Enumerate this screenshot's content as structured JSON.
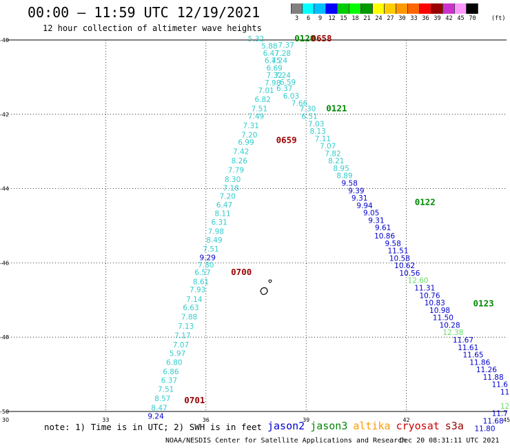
{
  "header": {
    "title": "00:00 – 11:59 UTC 12/19/2021",
    "subtitle": "12 hour collection of altimeter wave heights"
  },
  "colorbar": {
    "labels": [
      "3",
      "6",
      "9",
      "12",
      "15",
      "18",
      "21",
      "24",
      "27",
      "30",
      "33",
      "36",
      "39",
      "42",
      "45",
      "70"
    ],
    "unit": "(ft)",
    "colors": [
      "#808080",
      "#00ffff",
      "#00bfff",
      "#0000ff",
      "#00cc00",
      "#00ff00",
      "#009900",
      "#ffff00",
      "#ffcc00",
      "#ff9900",
      "#ff6600",
      "#ff0000",
      "#990000",
      "#cc33cc",
      "#ff99ff",
      "#000000"
    ]
  },
  "axes": {
    "lat_labels": [
      "-40",
      "-42",
      "-44",
      "-46",
      "-48",
      "-50"
    ],
    "lon_labels": [
      "30",
      "33",
      "36",
      "39",
      "42",
      "45"
    ]
  },
  "satellites": [
    {
      "name": "jason2",
      "color": "#0000cc"
    },
    {
      "name": "jason3",
      "color": "#008800"
    },
    {
      "name": "altika",
      "color": "#ff9900"
    },
    {
      "name": "cryosat",
      "color": "#cc0000"
    },
    {
      "name": "s3a",
      "color": "#990000"
    }
  ],
  "note": "note:  1) Time is in UTC;  2) SWH is in feet",
  "footer": {
    "center": "NOAA/NESDIS Center for Satellite Applications and Research",
    "timestamp": "Dec 20 08:31:11 UTC 2021"
  },
  "time_labels": [
    {
      "text": "0120",
      "color": "#008800",
      "lon": 38.65,
      "lat": -39.96
    },
    {
      "text": "0658",
      "color": "#990000",
      "lon": 39.15,
      "lat": -39.96
    },
    {
      "text": "0121",
      "color": "#008800",
      "lon": 39.6,
      "lat": -41.85
    },
    {
      "text": "0659",
      "color": "#990000",
      "lon": 38.1,
      "lat": -42.7
    },
    {
      "text": "0122",
      "color": "#008800",
      "lon": 42.25,
      "lat": -44.37
    },
    {
      "text": "0700",
      "color": "#990000",
      "lon": 36.75,
      "lat": -46.25
    },
    {
      "text": "0123",
      "color": "#008800",
      "lon": 44.0,
      "lat": -47.1
    },
    {
      "text": "0701",
      "color": "#990000",
      "lon": 35.35,
      "lat": -49.7
    }
  ],
  "track_a": [
    {
      "v": "5.32",
      "c": "#33cccc",
      "lon": 37.5,
      "lat": -39.96
    },
    {
      "v": "5.88",
      "c": "#33cccc",
      "lon": 37.9,
      "lat": -40.16
    },
    {
      "v": "6.47",
      "c": "#33cccc",
      "lon": 37.95,
      "lat": -40.35
    },
    {
      "v": "6.45",
      "c": "#33cccc",
      "lon": 38.0,
      "lat": -40.55
    },
    {
      "v": "6.69",
      "c": "#33cccc",
      "lon": 38.05,
      "lat": -40.75
    },
    {
      "v": "7.32",
      "c": "#33cccc",
      "lon": 38.05,
      "lat": -40.95
    },
    {
      "v": "7.98",
      "c": "#33cccc",
      "lon": 38.0,
      "lat": -41.15
    },
    {
      "v": "7.01",
      "c": "#33cccc",
      "lon": 37.8,
      "lat": -41.35
    },
    {
      "v": "6.82",
      "c": "#33cccc",
      "lon": 37.7,
      "lat": -41.6
    },
    {
      "v": "7.51",
      "c": "#33cccc",
      "lon": 37.6,
      "lat": -41.85
    },
    {
      "v": "7.49",
      "c": "#33cccc",
      "lon": 37.5,
      "lat": -42.05
    },
    {
      "v": "7.31",
      "c": "#33cccc",
      "lon": 37.35,
      "lat": -42.3
    },
    {
      "v": "7.20",
      "c": "#33cccc",
      "lon": 37.3,
      "lat": -42.55
    },
    {
      "v": "6.99",
      "c": "#33cccc",
      "lon": 37.2,
      "lat": -42.75
    },
    {
      "v": "7.42",
      "c": "#33cccc",
      "lon": 37.05,
      "lat": -43.0
    },
    {
      "v": "8.26",
      "c": "#33cccc",
      "lon": 37.0,
      "lat": -43.25
    },
    {
      "v": "7.79",
      "c": "#33cccc",
      "lon": 36.9,
      "lat": -43.5
    },
    {
      "v": "8.30",
      "c": "#33cccc",
      "lon": 36.8,
      "lat": -43.75
    },
    {
      "v": "7.18",
      "c": "#33cccc",
      "lon": 36.75,
      "lat": -43.98
    },
    {
      "v": "7.20",
      "c": "#33cccc",
      "lon": 36.65,
      "lat": -44.2
    },
    {
      "v": "6.47",
      "c": "#33cccc",
      "lon": 36.55,
      "lat": -44.43
    },
    {
      "v": "8.11",
      "c": "#33cccc",
      "lon": 36.5,
      "lat": -44.67
    },
    {
      "v": "6.31",
      "c": "#33cccc",
      "lon": 36.4,
      "lat": -44.9
    },
    {
      "v": "7.98",
      "c": "#33cccc",
      "lon": 36.3,
      "lat": -45.15
    },
    {
      "v": "8.49",
      "c": "#33cccc",
      "lon": 36.25,
      "lat": -45.38
    },
    {
      "v": "7.51",
      "c": "#33cccc",
      "lon": 36.15,
      "lat": -45.62
    },
    {
      "v": "9.29",
      "c": "#0000cc",
      "lon": 36.05,
      "lat": -45.85
    },
    {
      "v": "7.80",
      "c": "#33cccc",
      "lon": 36.0,
      "lat": -46.05
    },
    {
      "v": "6.57",
      "c": "#33cccc",
      "lon": 35.9,
      "lat": -46.25
    },
    {
      "v": "8.61",
      "c": "#33cccc",
      "lon": 35.85,
      "lat": -46.5
    },
    {
      "v": "7.93",
      "c": "#33cccc",
      "lon": 35.75,
      "lat": -46.72
    },
    {
      "v": "7.14",
      "c": "#33cccc",
      "lon": 35.65,
      "lat": -46.98
    },
    {
      "v": "6.63",
      "c": "#33cccc",
      "lon": 35.55,
      "lat": -47.2
    },
    {
      "v": "7.88",
      "c": "#33cccc",
      "lon": 35.5,
      "lat": -47.45
    },
    {
      "v": "7.13",
      "c": "#33cccc",
      "lon": 35.4,
      "lat": -47.7
    },
    {
      "v": "7.17",
      "c": "#33cccc",
      "lon": 35.3,
      "lat": -47.95
    },
    {
      "v": "7.07",
      "c": "#33cccc",
      "lon": 35.25,
      "lat": -48.2
    },
    {
      "v": "5.97",
      "c": "#33cccc",
      "lon": 35.15,
      "lat": -48.43
    },
    {
      "v": "6.80",
      "c": "#33cccc",
      "lon": 35.05,
      "lat": -48.67
    },
    {
      "v": "6.86",
      "c": "#33cccc",
      "lon": 34.95,
      "lat": -48.92
    },
    {
      "v": "6.37",
      "c": "#33cccc",
      "lon": 34.9,
      "lat": -49.16
    },
    {
      "v": "7.51",
      "c": "#33cccc",
      "lon": 34.8,
      "lat": -49.4
    },
    {
      "v": "8.57",
      "c": "#33cccc",
      "lon": 34.7,
      "lat": -49.65
    },
    {
      "v": "8.47",
      "c": "#33cccc",
      "lon": 34.6,
      "lat": -49.9
    },
    {
      "v": "9.24",
      "c": "#0000cc",
      "lon": 34.5,
      "lat": -50.12
    }
  ],
  "track_b": [
    {
      "v": "7.37",
      "c": "#33cccc",
      "lon": 38.4,
      "lat": -40.13
    },
    {
      "v": "7.28",
      "c": "#33cccc",
      "lon": 38.3,
      "lat": -40.35
    },
    {
      "v": "7.24",
      "c": "#33cccc",
      "lon": 38.2,
      "lat": -40.55
    },
    {
      "v": "7.24",
      "c": "#33cccc",
      "lon": 38.3,
      "lat": -40.95
    },
    {
      "v": "6.59",
      "c": "#33cccc",
      "lon": 38.45,
      "lat": -41.13
    },
    {
      "v": "6.37",
      "c": "#33cccc",
      "lon": 38.35,
      "lat": -41.3
    },
    {
      "v": "6.03",
      "c": "#33cccc",
      "lon": 38.55,
      "lat": -41.5
    },
    {
      "v": "7.66",
      "c": "#33cccc",
      "lon": 38.8,
      "lat": -41.7
    },
    {
      "v": "7.30",
      "c": "#33cccc",
      "lon": 39.05,
      "lat": -41.85
    },
    {
      "v": "6.51",
      "c": "#33cccc",
      "lon": 39.1,
      "lat": -42.05
    },
    {
      "v": "7.03",
      "c": "#33cccc",
      "lon": 39.3,
      "lat": -42.25
    },
    {
      "v": "8.13",
      "c": "#33cccc",
      "lon": 39.35,
      "lat": -42.45
    },
    {
      "v": "7.11",
      "c": "#33cccc",
      "lon": 39.5,
      "lat": -42.65
    },
    {
      "v": "7.07",
      "c": "#33cccc",
      "lon": 39.65,
      "lat": -42.85
    },
    {
      "v": "7.82",
      "c": "#33cccc",
      "lon": 39.8,
      "lat": -43.05
    },
    {
      "v": "8.21",
      "c": "#33cccc",
      "lon": 39.9,
      "lat": -43.25
    },
    {
      "v": "8.95",
      "c": "#33cccc",
      "lon": 40.05,
      "lat": -43.45
    },
    {
      "v": "8.89",
      "c": "#33cccc",
      "lon": 40.15,
      "lat": -43.65
    },
    {
      "v": "9.58",
      "c": "#0000cc",
      "lon": 40.3,
      "lat": -43.85
    },
    {
      "v": "9.39",
      "c": "#0000cc",
      "lon": 40.5,
      "lat": -44.05
    },
    {
      "v": "9.31",
      "c": "#0000cc",
      "lon": 40.6,
      "lat": -44.25
    },
    {
      "v": "9.94",
      "c": "#0000cc",
      "lon": 40.75,
      "lat": -44.45
    },
    {
      "v": "9.05",
      "c": "#0000cc",
      "lon": 40.95,
      "lat": -44.65
    },
    {
      "v": "9.31",
      "c": "#0000cc",
      "lon": 41.1,
      "lat": -44.85
    },
    {
      "v": "9.61",
      "c": "#0000cc",
      "lon": 41.3,
      "lat": -45.05
    },
    {
      "v": "10.86",
      "c": "#0000cc",
      "lon": 41.35,
      "lat": -45.27
    },
    {
      "v": "9.58",
      "c": "#0000cc",
      "lon": 41.6,
      "lat": -45.47
    },
    {
      "v": "11.51",
      "c": "#0000cc",
      "lon": 41.75,
      "lat": -45.67
    },
    {
      "v": "10.58",
      "c": "#0000cc",
      "lon": 41.8,
      "lat": -45.87
    },
    {
      "v": "10.62",
      "c": "#0000cc",
      "lon": 41.95,
      "lat": -46.07
    },
    {
      "v": "10.56",
      "c": "#0000cc",
      "lon": 42.1,
      "lat": -46.27
    },
    {
      "v": "12.60",
      "c": "#66dd66",
      "lon": 42.35,
      "lat": -46.47
    },
    {
      "v": "11.31",
      "c": "#0000cc",
      "lon": 42.55,
      "lat": -46.67
    },
    {
      "v": "10.76",
      "c": "#0000cc",
      "lon": 42.7,
      "lat": -46.87
    },
    {
      "v": "10.83",
      "c": "#0000cc",
      "lon": 42.85,
      "lat": -47.07
    },
    {
      "v": "10.98",
      "c": "#0000cc",
      "lon": 43.0,
      "lat": -47.27
    },
    {
      "v": "11.50",
      "c": "#0000cc",
      "lon": 43.1,
      "lat": -47.47
    },
    {
      "v": "10.28",
      "c": "#0000cc",
      "lon": 43.3,
      "lat": -47.67
    },
    {
      "v": "12.38",
      "c": "#66dd66",
      "lon": 43.4,
      "lat": -47.87
    },
    {
      "v": "11.67",
      "c": "#0000cc",
      "lon": 43.7,
      "lat": -48.07
    },
    {
      "v": "11.61",
      "c": "#0000cc",
      "lon": 43.85,
      "lat": -48.27
    },
    {
      "v": "11.65",
      "c": "#0000cc",
      "lon": 44.0,
      "lat": -48.47
    },
    {
      "v": "11.86",
      "c": "#0000cc",
      "lon": 44.2,
      "lat": -48.67
    },
    {
      "v": "11.26",
      "c": "#0000cc",
      "lon": 44.4,
      "lat": -48.87
    },
    {
      "v": "11.88",
      "c": "#0000cc",
      "lon": 44.6,
      "lat": -49.07
    },
    {
      "v": "11.6",
      "c": "#0000cc",
      "lon": 44.8,
      "lat": -49.27
    },
    {
      "v": "11",
      "c": "#0000cc",
      "lon": 44.95,
      "lat": -49.47
    }
  ],
  "track_c": [
    {
      "v": "12",
      "c": "#66dd66",
      "lon": 44.95,
      "lat": -49.85
    },
    {
      "v": "11.7",
      "c": "#0000cc",
      "lon": 44.8,
      "lat": -50.05
    },
    {
      "v": "11.68",
      "c": "#0000cc",
      "lon": 44.6,
      "lat": -50.25
    },
    {
      "v": "11.80",
      "c": "#0000cc",
      "lon": 44.35,
      "lat": -50.45
    }
  ]
}
